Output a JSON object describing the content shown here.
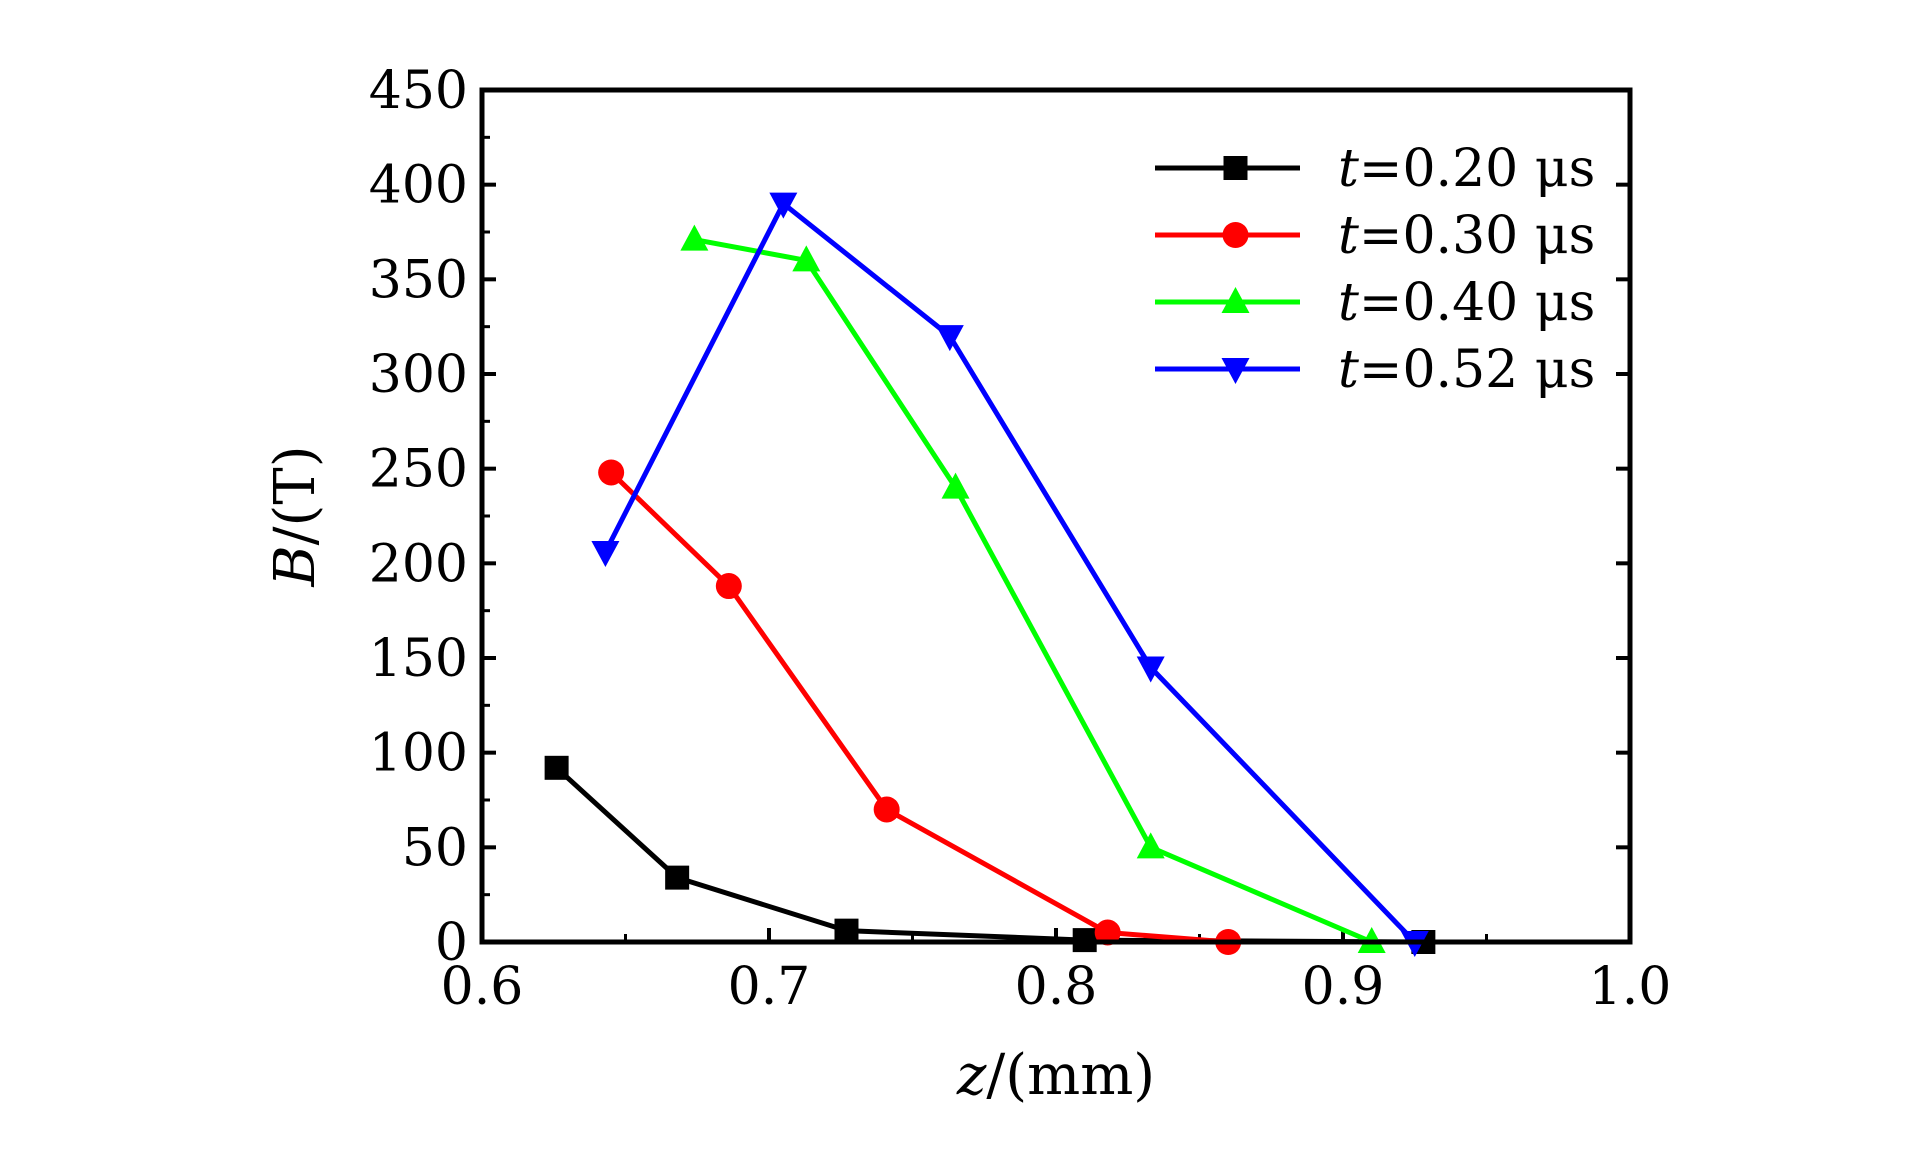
{
  "chart_data": {
    "type": "line",
    "xlabel": {
      "var": "z",
      "unit": "/(mm)"
    },
    "ylabel": {
      "var": "B",
      "unit": "/(T)"
    },
    "xlim": [
      0.6,
      1.0
    ],
    "ylim": [
      0,
      450
    ],
    "xticks": [
      0.6,
      0.7,
      0.8,
      0.9,
      1.0
    ],
    "xtick_labels": [
      "0.6",
      "0.7",
      "0.8",
      "0.9",
      "1.0"
    ],
    "yticks": [
      0,
      50,
      100,
      150,
      200,
      250,
      300,
      350,
      400,
      450
    ],
    "ytick_labels": [
      "0",
      "50",
      "100",
      "150",
      "200",
      "250",
      "300",
      "350",
      "400",
      "450"
    ],
    "grid": false,
    "legend_position": "top-right",
    "series": [
      {
        "name": "t=0.20 μs",
        "legend_var": "t",
        "legend_rest": "=0.20 μs",
        "color": "#000000",
        "marker": "square",
        "x": [
          0.626,
          0.668,
          0.727,
          0.81,
          0.928
        ],
        "y": [
          92,
          34,
          6,
          1,
          0
        ]
      },
      {
        "name": "t=0.30 μs",
        "legend_var": "t",
        "legend_rest": "=0.30 μs",
        "color": "#ff0000",
        "marker": "circle",
        "x": [
          0.645,
          0.686,
          0.741,
          0.818,
          0.86
        ],
        "y": [
          248,
          188,
          70,
          5,
          0
        ]
      },
      {
        "name": "t=0.40 μs",
        "legend_var": "t",
        "legend_rest": "=0.40 μs",
        "color": "#00ff00",
        "marker": "triangle-up",
        "x": [
          0.674,
          0.713,
          0.765,
          0.833,
          0.91
        ],
        "y": [
          371,
          360,
          240,
          50,
          0
        ]
      },
      {
        "name": "t=0.52 μs",
        "legend_var": "t",
        "legend_rest": "=0.52 μs",
        "color": "#0000ff",
        "marker": "triangle-down",
        "x": [
          0.643,
          0.705,
          0.763,
          0.833,
          0.925
        ],
        "y": [
          206,
          390,
          320,
          145,
          0
        ]
      }
    ]
  }
}
